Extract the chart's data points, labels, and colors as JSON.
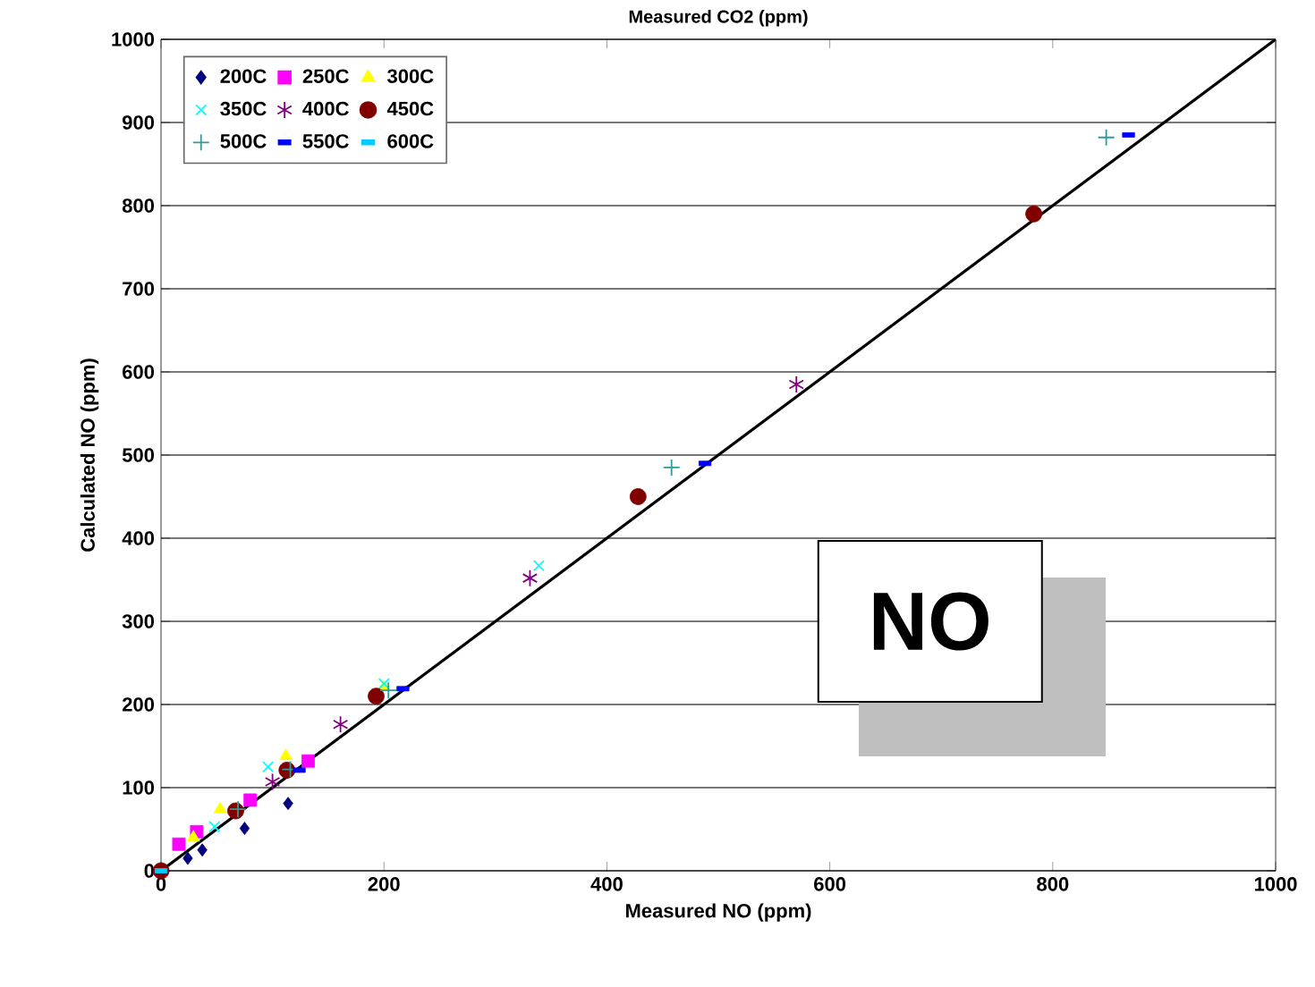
{
  "chart_data": {
    "type": "scatter",
    "title": "Measured CO2 (ppm)",
    "xlabel": "Measured NO (ppm)",
    "ylabel": "Calculated NO (ppm)",
    "xlim": [
      0,
      1000
    ],
    "ylim": [
      0,
      1000
    ],
    "xticks": [
      0,
      200,
      400,
      600,
      800,
      1000
    ],
    "yticks": [
      0,
      100,
      200,
      300,
      400,
      500,
      600,
      700,
      800,
      900,
      1000
    ],
    "grid": "y",
    "legend": "top left",
    "annotations": [
      "NO"
    ],
    "series": [
      {
        "name": "200C",
        "color": "#000080",
        "marker": "diamond",
        "x": [
          24,
          37,
          75,
          114
        ],
        "values": [
          15,
          25,
          51,
          81
        ]
      },
      {
        "name": "250C",
        "color": "#ff00ff",
        "marker": "square",
        "x": [
          16,
          32,
          80,
          132
        ],
        "values": [
          32,
          47,
          85,
          132
        ]
      },
      {
        "name": "300C",
        "color": "#ffff00",
        "marker": "triangle",
        "x": [
          29,
          53,
          112,
          200
        ],
        "values": [
          40,
          74,
          138,
          221
        ]
      },
      {
        "name": "350C",
        "color": "#00ffff",
        "marker": "cross",
        "x": [
          48,
          96,
          200,
          339
        ],
        "values": [
          53,
          125,
          225,
          367
        ]
      },
      {
        "name": "400C",
        "color": "#800080",
        "x": [
          100,
          161,
          331,
          570
        ],
        "values": [
          107,
          176,
          352,
          585
        ]
      },
      {
        "name": "450C",
        "color": "#800000",
        "marker": "circle",
        "x": [
          0,
          67,
          113,
          193,
          428,
          783
        ],
        "values": [
          0,
          72,
          121,
          210,
          450,
          790
        ]
      },
      {
        "name": "500C",
        "color": "#339999",
        "marker": "plus",
        "x": [
          69,
          116,
          204,
          458,
          848
        ],
        "values": [
          74,
          122,
          217,
          485,
          882
        ]
      },
      {
        "name": "550C",
        "color": "#0000ff",
        "marker": "square",
        "x": [
          124,
          217,
          488,
          868
        ],
        "values": [
          121,
          219,
          490,
          885
        ]
      },
      {
        "name": "600C",
        "color": "#00ccff",
        "marker": "square",
        "x": [
          0
        ],
        "values": [
          0
        ]
      },
      {
        "type": "line",
        "color": "#000000",
        "marker": "none",
        "line_style": "solid",
        "x": [
          0,
          1000
        ],
        "values": [
          0,
          1000
        ]
      }
    ]
  }
}
